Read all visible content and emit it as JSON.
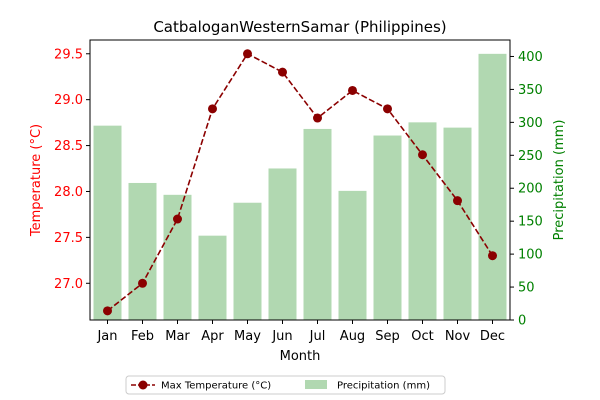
{
  "chart_data": {
    "type": "bar+line",
    "title": "CatbaloganWesternSamar (Philippines)",
    "xlabel": "Month",
    "categories": [
      "Jan",
      "Feb",
      "Mar",
      "Apr",
      "May",
      "Jun",
      "Jul",
      "Aug",
      "Sep",
      "Oct",
      "Nov",
      "Dec"
    ],
    "temperature": {
      "axis_label": "Temperature (°C)",
      "name": "Max Temperature (°C)",
      "color": "#8b0000",
      "tick_color": "#ff0000",
      "ylim": [
        26.6,
        29.65
      ],
      "ticks": [
        "27.0",
        "27.5",
        "28.0",
        "28.5",
        "29.0",
        "29.5"
      ],
      "values": [
        26.7,
        27.0,
        27.7,
        28.9,
        29.5,
        29.3,
        28.8,
        29.1,
        28.9,
        28.4,
        27.9,
        27.3
      ]
    },
    "precipitation": {
      "axis_label": "Precipitation (mm)",
      "name": "Precipitation (mm)",
      "color": "#b1d8b1",
      "tick_color": "#008000",
      "ylim": [
        0,
        425
      ],
      "ticks": [
        "0",
        "50",
        "100",
        "150",
        "200",
        "250",
        "300",
        "350",
        "400"
      ],
      "values": [
        295,
        208,
        190,
        128,
        178,
        230,
        290,
        196,
        280,
        300,
        292,
        404
      ]
    },
    "legend": {
      "position": "bottom-center"
    }
  }
}
